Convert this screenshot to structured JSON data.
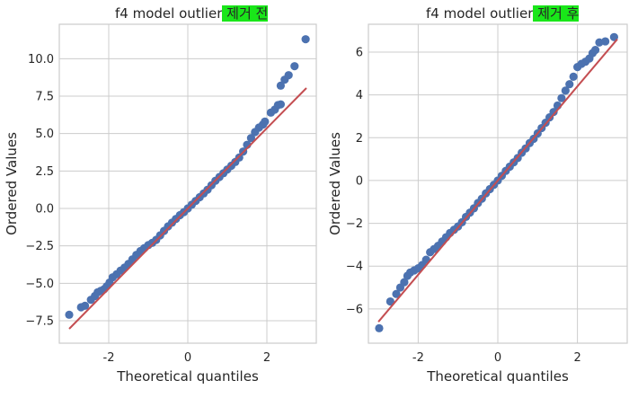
{
  "chart_data": [
    {
      "type": "scatter",
      "title_prefix": "f4 model outlier",
      "title_highlight": " 제거 전",
      "xlabel": "Theoretical quantiles",
      "ylabel": "Ordered Values",
      "xlim": [
        -3.25,
        3.25
      ],
      "ylim": [
        -9.0,
        12.3
      ],
      "xticks": [
        -2,
        0,
        2
      ],
      "xtick_labels": [
        "-2",
        "0",
        "2"
      ],
      "yticks": [
        -7.5,
        -5.0,
        -2.5,
        0.0,
        2.5,
        5.0,
        7.5,
        10.0
      ],
      "ytick_labels": [
        "−7.5",
        "−5.0",
        "−2.5",
        "0.0",
        "2.5",
        "5.0",
        "7.5",
        "10.0"
      ],
      "grid": true,
      "fit_line": {
        "slope": 2.68,
        "intercept": 0.0,
        "x_range": [
          -3.0,
          3.0
        ]
      },
      "points": [
        [
          -3.0,
          -7.1
        ],
        [
          -2.7,
          -6.6
        ],
        [
          -2.6,
          -6.5
        ],
        [
          -2.45,
          -6.1
        ],
        [
          -2.35,
          -5.85
        ],
        [
          -2.28,
          -5.6
        ],
        [
          -2.2,
          -5.5
        ],
        [
          -2.12,
          -5.4
        ],
        [
          -2.05,
          -5.2
        ],
        [
          -1.98,
          -4.95
        ],
        [
          -1.9,
          -4.6
        ],
        [
          -1.8,
          -4.4
        ],
        [
          -1.7,
          -4.15
        ],
        [
          -1.6,
          -3.95
        ],
        [
          -1.5,
          -3.7
        ],
        [
          -1.4,
          -3.4
        ],
        [
          -1.3,
          -3.1
        ],
        [
          -1.2,
          -2.85
        ],
        [
          -1.1,
          -2.65
        ],
        [
          -1.0,
          -2.45
        ],
        [
          -0.9,
          -2.3
        ],
        [
          -0.8,
          -2.1
        ],
        [
          -0.7,
          -1.8
        ],
        [
          -0.6,
          -1.5
        ],
        [
          -0.5,
          -1.2
        ],
        [
          -0.4,
          -0.95
        ],
        [
          -0.3,
          -0.7
        ],
        [
          -0.2,
          -0.45
        ],
        [
          -0.1,
          -0.25
        ],
        [
          0.0,
          0.0
        ],
        [
          0.1,
          0.25
        ],
        [
          0.2,
          0.5
        ],
        [
          0.3,
          0.75
        ],
        [
          0.4,
          1.0
        ],
        [
          0.5,
          1.25
        ],
        [
          0.6,
          1.55
        ],
        [
          0.7,
          1.85
        ],
        [
          0.8,
          2.1
        ],
        [
          0.9,
          2.35
        ],
        [
          1.0,
          2.6
        ],
        [
          1.1,
          2.85
        ],
        [
          1.2,
          3.1
        ],
        [
          1.3,
          3.4
        ],
        [
          1.4,
          3.8
        ],
        [
          1.5,
          4.25
        ],
        [
          1.6,
          4.7
        ],
        [
          1.7,
          5.1
        ],
        [
          1.8,
          5.4
        ],
        [
          1.9,
          5.6
        ],
        [
          1.95,
          5.8
        ],
        [
          2.1,
          6.4
        ],
        [
          2.2,
          6.6
        ],
        [
          2.28,
          6.9
        ],
        [
          2.35,
          6.95
        ],
        [
          2.35,
          8.2
        ],
        [
          2.45,
          8.6
        ],
        [
          2.55,
          8.9
        ],
        [
          2.7,
          9.5
        ],
        [
          2.98,
          11.3
        ]
      ]
    },
    {
      "type": "scatter",
      "title_prefix": "f4 model outlier",
      "title_highlight": " 제거 후 ",
      "xlabel": "Theoretical quantiles",
      "ylabel": "Ordered Values",
      "xlim": [
        -3.25,
        3.25
      ],
      "ylim": [
        -7.6,
        7.3
      ],
      "xticks": [
        -2,
        0,
        2
      ],
      "xtick_labels": [
        "-2",
        "0",
        "2"
      ],
      "yticks": [
        -6,
        -4,
        -2,
        0,
        2,
        4,
        6
      ],
      "ytick_labels": [
        "−6",
        "−4",
        "−2",
        "0",
        "2",
        "4",
        "6"
      ],
      "grid": true,
      "fit_line": {
        "slope": 2.2,
        "intercept": 0.0,
        "x_range": [
          -3.0,
          3.0
        ]
      },
      "points": [
        [
          -2.98,
          -6.9
        ],
        [
          -2.7,
          -5.65
        ],
        [
          -2.55,
          -5.3
        ],
        [
          -2.45,
          -5.0
        ],
        [
          -2.35,
          -4.75
        ],
        [
          -2.27,
          -4.45
        ],
        [
          -2.2,
          -4.3
        ],
        [
          -2.1,
          -4.2
        ],
        [
          -2.0,
          -4.1
        ],
        [
          -1.9,
          -3.95
        ],
        [
          -1.8,
          -3.7
        ],
        [
          -1.7,
          -3.35
        ],
        [
          -1.6,
          -3.2
        ],
        [
          -1.5,
          -3.05
        ],
        [
          -1.4,
          -2.85
        ],
        [
          -1.3,
          -2.65
        ],
        [
          -1.2,
          -2.45
        ],
        [
          -1.1,
          -2.3
        ],
        [
          -1.0,
          -2.15
        ],
        [
          -0.9,
          -1.95
        ],
        [
          -0.8,
          -1.7
        ],
        [
          -0.7,
          -1.5
        ],
        [
          -0.6,
          -1.3
        ],
        [
          -0.5,
          -1.05
        ],
        [
          -0.4,
          -0.85
        ],
        [
          -0.3,
          -0.6
        ],
        [
          -0.2,
          -0.4
        ],
        [
          -0.1,
          -0.2
        ],
        [
          0.0,
          0.0
        ],
        [
          0.1,
          0.22
        ],
        [
          0.2,
          0.45
        ],
        [
          0.3,
          0.65
        ],
        [
          0.4,
          0.85
        ],
        [
          0.5,
          1.05
        ],
        [
          0.6,
          1.3
        ],
        [
          0.7,
          1.5
        ],
        [
          0.8,
          1.75
        ],
        [
          0.9,
          1.95
        ],
        [
          1.0,
          2.2
        ],
        [
          1.1,
          2.45
        ],
        [
          1.2,
          2.7
        ],
        [
          1.3,
          2.95
        ],
        [
          1.4,
          3.2
        ],
        [
          1.5,
          3.5
        ],
        [
          1.6,
          3.85
        ],
        [
          1.7,
          4.2
        ],
        [
          1.8,
          4.5
        ],
        [
          1.9,
          4.85
        ],
        [
          2.0,
          5.3
        ],
        [
          2.1,
          5.45
        ],
        [
          2.2,
          5.55
        ],
        [
          2.3,
          5.7
        ],
        [
          2.38,
          5.95
        ],
        [
          2.45,
          6.1
        ],
        [
          2.55,
          6.45
        ],
        [
          2.7,
          6.5
        ],
        [
          2.92,
          6.7
        ]
      ]
    }
  ],
  "style": {
    "point_color": "#4c72b0",
    "line_color": "#c44e52",
    "grid_color": "#cccccc",
    "axis_color": "#cccccc",
    "text_color": "#262626",
    "highlight_color": "#19e619"
  }
}
